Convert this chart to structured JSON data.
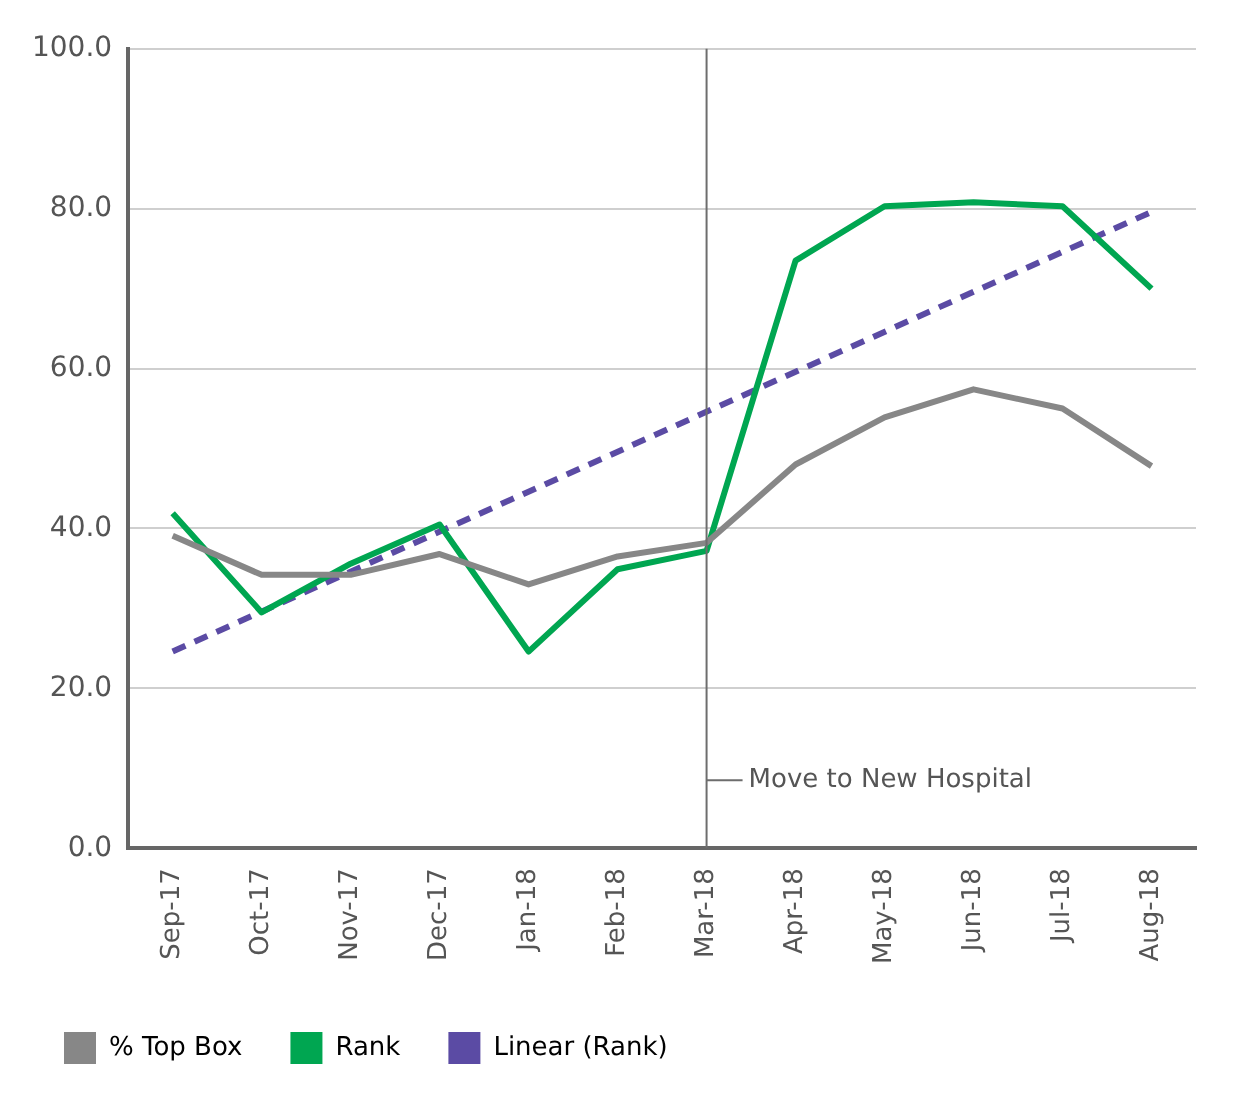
{
  "chart_data": {
    "type": "line",
    "categories": [
      "Sep-17",
      "Oct-17",
      "Nov-17",
      "Dec-17",
      "Jan-18",
      "Feb-18",
      "Mar-18",
      "Apr-18",
      "May-18",
      "Jun-18",
      "Jul-18",
      "Aug-18"
    ],
    "series": [
      {
        "name": "% Top Box",
        "color": "#878787",
        "values": [
          39.1,
          34.2,
          34.2,
          36.8,
          33.0,
          36.5,
          38.2,
          48.0,
          53.9,
          57.4,
          55.0,
          47.8
        ]
      },
      {
        "name": "Rank",
        "color": "#00a651",
        "values": [
          41.9,
          29.5,
          35.6,
          40.5,
          24.6,
          34.9,
          37.2,
          73.5,
          80.3,
          80.8,
          80.3,
          70.0
        ]
      },
      {
        "name": "Linear (Rank)",
        "color": "#5b4ba4",
        "line_style": "dashed",
        "x": [
          "Sep-17",
          "Aug-18"
        ],
        "values": [
          24.6,
          79.6
        ]
      }
    ],
    "ylim": [
      0,
      100
    ],
    "yticks": [
      {
        "value": 0,
        "label": "0.0"
      },
      {
        "value": 20,
        "label": "20.0"
      },
      {
        "value": 40,
        "label": "40.0"
      },
      {
        "value": 60,
        "label": "60.0"
      },
      {
        "value": 80,
        "label": "80.0"
      },
      {
        "value": 100,
        "label": "100.0"
      }
    ],
    "ref_lines": [
      {
        "axis": "x",
        "value": "Mar-18",
        "label": "Move to New Hospital",
        "color": "#6d6d6d"
      }
    ],
    "grid": "y",
    "legend": "bottom",
    "marker": "none",
    "line_style": "solid"
  }
}
